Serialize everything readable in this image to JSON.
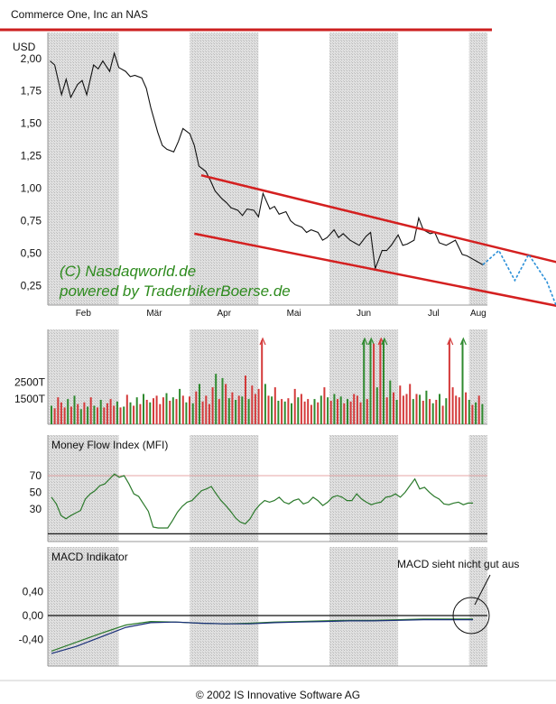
{
  "header": {
    "title": "Commerce One, Inc an NAS"
  },
  "footer": {
    "copyright": "© 2002 IS Innovative Software AG"
  },
  "watermark": {
    "line1": "(C) Nasdaqworld.de",
    "line2": "powered by TraderbikerBoerse.de"
  },
  "annotation": {
    "macd_note": "MACD sieht nicht gut aus"
  },
  "colors": {
    "accent_red": "#cc1f1f",
    "price_line": "#111111",
    "trend_lines": "#d42020",
    "forecast": "#2a8fd8",
    "volume_up": "#2f8a2f",
    "volume_down": "#d43a3a",
    "indicator_line": "#2c7a2c",
    "macd_signal": "#1a2f7a",
    "shading": "#cfcfcf"
  },
  "chart_data": [
    {
      "type": "line",
      "name": "price",
      "ylabel": "USD",
      "yticks": [
        "2,00",
        "1,75",
        "1,50",
        "1,25",
        "1,00",
        "0,75",
        "0,50",
        "0,25"
      ],
      "ytick_values": [
        2.0,
        1.75,
        1.5,
        1.25,
        1.0,
        0.75,
        0.5,
        0.25
      ],
      "ylim": [
        0.1,
        2.2
      ],
      "months": [
        "Feb",
        "Mär",
        "Apr",
        "Mai",
        "Jun",
        "Jul",
        "Aug"
      ],
      "x": [
        "2002-01-30",
        "2002-02-01",
        "2002-02-04",
        "2002-02-06",
        "2002-02-08",
        "2002-02-11",
        "2002-02-13",
        "2002-02-15",
        "2002-02-18",
        "2002-02-20",
        "2002-02-22",
        "2002-02-25",
        "2002-02-27",
        "2002-03-01",
        "2002-03-04",
        "2002-03-06",
        "2002-03-08",
        "2002-03-11",
        "2002-03-13",
        "2002-03-15",
        "2002-03-18",
        "2002-03-20",
        "2002-03-22",
        "2002-03-25",
        "2002-03-27",
        "2002-03-29",
        "2002-04-01",
        "2002-04-03",
        "2002-04-05",
        "2002-04-08",
        "2002-04-10",
        "2002-04-12",
        "2002-04-15",
        "2002-04-17",
        "2002-04-19",
        "2002-04-22",
        "2002-04-24",
        "2002-04-26",
        "2002-04-29",
        "2002-05-01",
        "2002-05-03",
        "2002-05-06",
        "2002-05-08",
        "2002-05-10",
        "2002-05-13",
        "2002-05-15",
        "2002-05-17",
        "2002-05-20",
        "2002-05-22",
        "2002-05-24",
        "2002-05-27",
        "2002-05-29",
        "2002-05-31",
        "2002-06-03",
        "2002-06-05",
        "2002-06-07",
        "2002-06-10",
        "2002-06-12",
        "2002-06-14",
        "2002-06-17",
        "2002-06-19",
        "2002-06-21",
        "2002-06-24",
        "2002-06-26",
        "2002-06-28",
        "2002-07-01",
        "2002-07-03",
        "2002-07-05",
        "2002-07-08",
        "2002-07-10",
        "2002-07-12",
        "2002-07-15",
        "2002-07-17",
        "2002-07-19",
        "2002-07-22",
        "2002-07-24",
        "2002-07-26",
        "2002-07-29",
        "2002-07-31",
        "2002-08-02",
        "2002-08-05",
        "2002-08-07"
      ],
      "values": [
        1.98,
        1.95,
        1.72,
        1.84,
        1.7,
        1.8,
        1.83,
        1.72,
        1.95,
        1.92,
        1.98,
        1.9,
        2.04,
        1.93,
        1.9,
        1.86,
        1.87,
        1.85,
        1.77,
        1.62,
        1.43,
        1.33,
        1.3,
        1.28,
        1.36,
        1.46,
        1.42,
        1.33,
        1.17,
        1.13,
        1.06,
        0.98,
        0.92,
        0.89,
        0.85,
        0.83,
        0.79,
        0.84,
        0.83,
        0.78,
        0.96,
        0.84,
        0.86,
        0.8,
        0.82,
        0.75,
        0.72,
        0.7,
        0.66,
        0.68,
        0.66,
        0.6,
        0.62,
        0.68,
        0.62,
        0.65,
        0.6,
        0.58,
        0.56,
        0.63,
        0.66,
        0.38,
        0.52,
        0.52,
        0.56,
        0.64,
        0.56,
        0.57,
        0.6,
        0.77,
        0.68,
        0.65,
        0.66,
        0.58,
        0.56,
        0.58,
        0.6,
        0.49,
        0.48,
        0.46,
        0.43,
        0.41
      ],
      "trend_upper": {
        "from": [
          "2002-04-06",
          1.1
        ],
        "to": [
          "2002-09-20",
          0.38
        ]
      },
      "trend_lower": {
        "from": [
          "2002-04-03",
          0.65
        ],
        "to": [
          "2002-09-18",
          0.06
        ]
      },
      "forecast": {
        "x": [
          "2002-08-07",
          "2002-08-14",
          "2002-08-21",
          "2002-08-27",
          "2002-09-04",
          "2002-09-13"
        ],
        "values": [
          0.41,
          0.52,
          0.29,
          0.49,
          0.28,
          -0.13
        ]
      },
      "shaded_months": [
        "Feb",
        "Apr",
        "Jun",
        "Aug"
      ]
    },
    {
      "type": "bar",
      "name": "volume",
      "yticks": [
        "2500T",
        "1500T"
      ],
      "ytick_values": [
        2500,
        1500
      ],
      "ylim": [
        0,
        5000
      ],
      "values": [
        1100,
        950,
        1600,
        1300,
        1000,
        1500,
        1050,
        1700,
        1200,
        900,
        1300,
        1050,
        1600,
        1100,
        1000,
        1450,
        1000,
        1250,
        1500,
        1100,
        1350,
        1000,
        1050,
        1750,
        1300,
        1100,
        1600,
        1200,
        1800,
        1450,
        1300,
        1550,
        1700,
        1200,
        1600,
        1850,
        1400,
        1600,
        1500,
        2100,
        1700,
        1300,
        1650,
        1250,
        1950,
        2400,
        1350,
        1700,
        1200,
        2200,
        3000,
        1500,
        2750,
        2400,
        1550,
        1900,
        1450,
        1700,
        1650,
        2900,
        1500,
        2300,
        1800,
        2100,
        5000,
        2400,
        1700,
        1650,
        2200,
        1400,
        1500,
        1350,
        1550,
        1250,
        2100,
        1600,
        1800,
        1350,
        1500,
        1150,
        1500,
        1300,
        1700,
        2200,
        1600,
        1400,
        1800,
        1500,
        1650,
        1250,
        1500,
        1350,
        1800,
        1700,
        1300,
        5000,
        1500,
        5000,
        4800,
        2200,
        5000,
        5000,
        1600,
        2600,
        1900,
        1450,
        2300,
        1700,
        1800,
        2400,
        1500,
        1800,
        1750,
        1400,
        2000,
        1500,
        1250,
        1450,
        1800,
        1100,
        1550,
        5000,
        2200,
        1700,
        1600,
        5000,
        1900,
        1450,
        1150,
        1300,
        1700,
        1200
      ],
      "overflow_arrows": 6
    },
    {
      "type": "line",
      "name": "mfi",
      "title": "Money Flow Index (MFI)",
      "yticks": [
        "70",
        "50",
        "30"
      ],
      "ytick_values": [
        70,
        50,
        30
      ],
      "ylim": [
        -5,
        95
      ],
      "values": [
        44,
        36,
        22,
        18,
        22,
        25,
        28,
        42,
        48,
        52,
        58,
        60,
        66,
        72,
        68,
        70,
        60,
        48,
        45,
        36,
        27,
        8,
        7,
        7,
        7,
        16,
        26,
        33,
        38,
        40,
        46,
        52,
        54,
        57,
        48,
        40,
        34,
        27,
        19,
        14,
        12,
        18,
        28,
        35,
        40,
        38,
        40,
        44,
        38,
        36,
        40,
        42,
        36,
        38,
        44,
        40,
        34,
        38,
        44,
        46,
        44,
        40,
        40,
        48,
        42,
        38,
        35,
        37,
        38,
        44,
        45,
        48,
        44,
        50,
        58,
        66,
        54,
        56,
        50,
        45,
        42,
        36,
        35,
        37,
        38,
        35,
        37,
        37
      ],
      "guide_values": [
        70,
        0
      ]
    },
    {
      "type": "line",
      "name": "macd",
      "title": "MACD Indikator",
      "yticks": [
        "0,40",
        "0,00",
        "-0,40"
      ],
      "ytick_values": [
        0.4,
        0.0,
        -0.4
      ],
      "ylim": [
        -0.7,
        0.7
      ],
      "series": [
        {
          "values": [
            -0.6,
            -0.45,
            -0.3,
            -0.16,
            -0.1,
            -0.11,
            -0.13,
            -0.14,
            -0.13,
            -0.11,
            -0.1,
            -0.09,
            -0.08,
            -0.08,
            -0.07,
            -0.06,
            -0.06,
            -0.06
          ]
        },
        {
          "values": [
            -0.64,
            -0.52,
            -0.36,
            -0.2,
            -0.12,
            -0.11,
            -0.13,
            -0.14,
            -0.14,
            -0.12,
            -0.11,
            -0.1,
            -0.09,
            -0.09,
            -0.08,
            -0.07,
            -0.07,
            -0.07
          ]
        }
      ]
    }
  ]
}
